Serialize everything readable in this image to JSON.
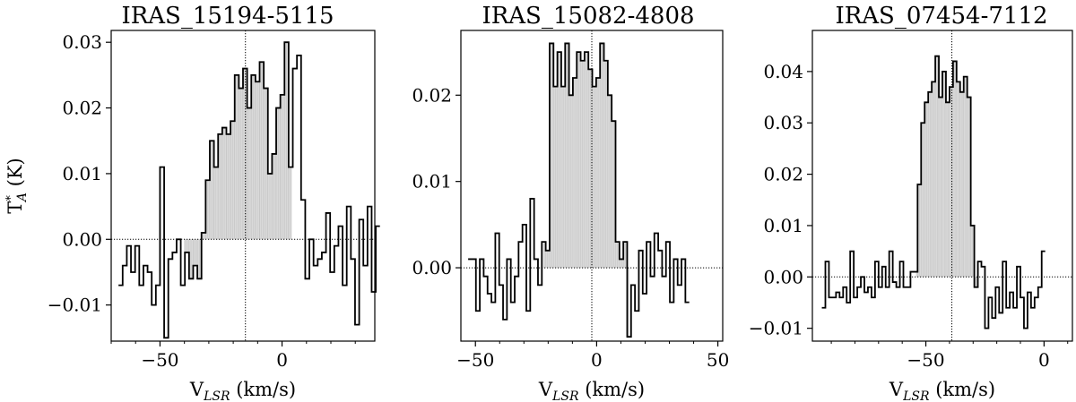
{
  "chart_data": [
    {
      "type": "line",
      "style": "step",
      "title": "IRAS_15194-5115",
      "xlabel": "V_LSR (km/s)",
      "ylabel": "T*_A (K)",
      "xlim": [
        -70,
        38
      ],
      "ylim": [
        -0.0155,
        0.0318
      ],
      "xticks": [
        -50,
        0
      ],
      "yticks": [
        -0.01,
        0.0,
        0.01,
        0.02,
        0.03
      ],
      "ytick_labels": [
        "−0.01",
        "0.00",
        "0.01",
        "0.02",
        "0.03"
      ],
      "xtick_labels": [
        "−50",
        "0"
      ],
      "center_velocity": -15,
      "shaded_range": [
        -40,
        4
      ],
      "bin_width": 1.7,
      "x_start": -67,
      "values": [
        -0.007,
        -0.004,
        -0.001,
        -0.005,
        -0.001,
        -0.007,
        -0.004,
        -0.005,
        -0.01,
        -0.007,
        0.011,
        -0.015,
        -0.003,
        -0.002,
        0.0,
        -0.007,
        -0.002,
        -0.006,
        -0.004,
        -0.006,
        0.001,
        0.009,
        0.015,
        0.011,
        0.016,
        0.017,
        0.016,
        0.018,
        0.025,
        0.023,
        0.026,
        0.02,
        0.025,
        0.024,
        0.027,
        0.023,
        0.01,
        0.013,
        0.02,
        0.022,
        0.03,
        0.011,
        0.026,
        0.028,
        0.006,
        -0.006,
        0.0,
        -0.004,
        -0.003,
        -0.002,
        0.004,
        -0.005,
        -0.001,
        0.002,
        -0.007,
        0.005,
        -0.003,
        -0.013,
        0.003,
        -0.004,
        0.005,
        -0.008,
        0.002
      ]
    },
    {
      "type": "line",
      "style": "step",
      "title": "IRAS_15082-4808",
      "xlabel": "V_LSR (km/s)",
      "ylabel": "",
      "xlim": [
        -56,
        52
      ],
      "ylim": [
        -0.0085,
        0.0275
      ],
      "xticks": [
        -50,
        0,
        50
      ],
      "yticks": [
        0.0,
        0.01,
        0.02
      ],
      "ytick_labels": [
        "0.00",
        "0.01",
        "0.02"
      ],
      "xtick_labels": [
        "−50",
        "0",
        "50"
      ],
      "center_velocity": -2,
      "shaded_range": [
        -21.8,
        13.4
      ],
      "bin_width": 1.6,
      "x_start": -53,
      "values": [
        0.001,
        0.001,
        -0.005,
        0.001,
        -0.001,
        -0.003,
        -0.004,
        0.004,
        -0.002,
        -0.006,
        0.001,
        -0.004,
        -0.001,
        0.003,
        0.005,
        -0.005,
        0.008,
        0.001,
        -0.002,
        0.003,
        0.002,
        0.026,
        0.021,
        0.025,
        0.021,
        0.026,
        0.02,
        0.022,
        0.025,
        0.024,
        0.025,
        0.023,
        0.021,
        0.022,
        0.026,
        0.024,
        0.02,
        0.017,
        0.003,
        0.001,
        0.003,
        -0.008,
        -0.002,
        -0.005,
        0.002,
        -0.003,
        0.003,
        -0.001,
        0.004,
        0.002,
        -0.001,
        0.003,
        -0.004,
        0.001,
        -0.002,
        0.001,
        -0.004
      ]
    },
    {
      "type": "line",
      "style": "step",
      "title": "IRAS_07454-7112",
      "xlabel": "V_LSR (km/s)",
      "ylabel": "",
      "xlim": [
        -98,
        12
      ],
      "ylim": [
        -0.0125,
        0.048
      ],
      "xticks": [
        -50,
        0
      ],
      "yticks": [
        -0.01,
        0.0,
        0.01,
        0.02,
        0.03,
        0.04
      ],
      "ytick_labels": [
        "−0.01",
        "0.00",
        "0.01",
        "0.02",
        "0.03",
        "0.04"
      ],
      "xtick_labels": [
        "−50",
        "0"
      ],
      "center_velocity": -39,
      "shaded_range": [
        -54,
        -27.5
      ],
      "bin_width": 1.5,
      "x_start": -94,
      "values": [
        -0.006,
        0.003,
        -0.004,
        -0.004,
        -0.003,
        -0.004,
        -0.002,
        -0.005,
        0.005,
        -0.004,
        -0.002,
        0.0,
        -0.003,
        -0.002,
        -0.004,
        0.003,
        -0.002,
        0.002,
        -0.002,
        0.005,
        -0.001,
        -0.002,
        0.003,
        -0.002,
        -0.002,
        0.001,
        0.001,
        0.018,
        0.03,
        0.034,
        0.036,
        0.038,
        0.043,
        0.035,
        0.04,
        0.034,
        0.037,
        0.042,
        0.038,
        0.036,
        0.039,
        0.035,
        0.01,
        -0.002,
        0.003,
        0.002,
        -0.01,
        -0.004,
        -0.008,
        -0.002,
        -0.007,
        0.003,
        -0.006,
        -0.003,
        -0.006,
        0.002,
        -0.004,
        -0.01,
        -0.003,
        -0.006,
        -0.004,
        -0.002,
        0.005
      ]
    }
  ]
}
